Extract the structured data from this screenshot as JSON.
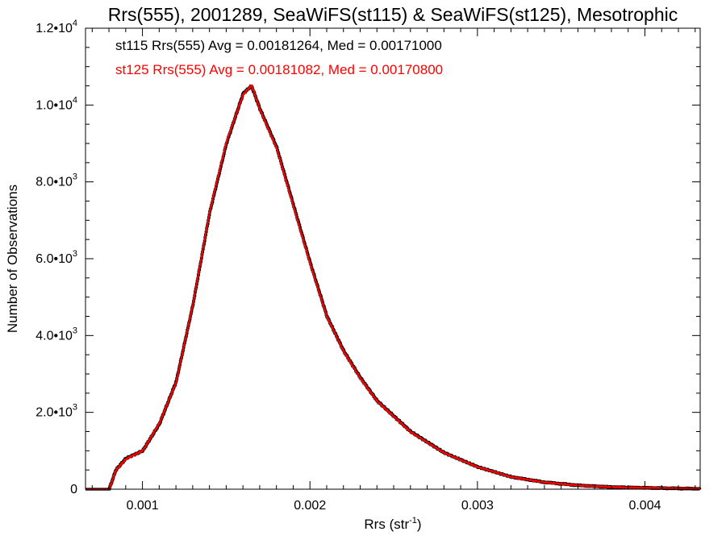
{
  "chart_data": {
    "type": "line",
    "style": "step-histogram",
    "title": "Rrs(555), 2001289, SeaWiFS(st115) & SeaWiFS(st125), Mesotrophic",
    "xlabel": {
      "main": "Rrs (str",
      "sup": "-1",
      "end": ")"
    },
    "ylabel": "Number of Observations",
    "xlim": [
      0.00066,
      0.00433
    ],
    "ylim": [
      0,
      12000
    ],
    "grid": false,
    "x_ticks": [
      {
        "value": 0.001,
        "label": "0.001"
      },
      {
        "value": 0.002,
        "label": "0.002"
      },
      {
        "value": 0.003,
        "label": "0.003"
      },
      {
        "value": 0.004,
        "label": "0.004"
      }
    ],
    "y_ticks": [
      {
        "value": 0,
        "mant": "0",
        "exp": ""
      },
      {
        "value": 2000,
        "mant": "2.0•10",
        "exp": "3"
      },
      {
        "value": 4000,
        "mant": "4.0•10",
        "exp": "3"
      },
      {
        "value": 6000,
        "mant": "6.0•10",
        "exp": "3"
      },
      {
        "value": 8000,
        "mant": "8.0•10",
        "exp": "3"
      },
      {
        "value": 10000,
        "mant": "1.0•10",
        "exp": "4"
      },
      {
        "value": 12000,
        "mant": "1.2•10",
        "exp": "4"
      }
    ],
    "annotations": [
      {
        "text": "st115 Rrs(555) Avg = 0.00181264, Med = 0.00171000",
        "color": "#000000"
      },
      {
        "text": "st125 Rrs(555) Avg = 0.00181082, Med = 0.00170800",
        "color": "#ff0000"
      }
    ],
    "series": [
      {
        "color": "#000000",
        "x": [
          0.0008,
          0.00084,
          0.0009,
          0.001,
          0.0011,
          0.0012,
          0.0013,
          0.0014,
          0.0015,
          0.0016,
          0.00165,
          0.0017,
          0.0018,
          0.0019,
          0.002,
          0.0021,
          0.0022,
          0.0023,
          0.0024,
          0.0026,
          0.0028,
          0.003,
          0.0032,
          0.0034,
          0.0036,
          0.0038,
          0.004,
          0.0042,
          0.00433
        ],
        "y": [
          0,
          500,
          800,
          1000,
          1700,
          2800,
          4800,
          7200,
          9000,
          10300,
          10500,
          9900,
          8900,
          7400,
          5900,
          4500,
          3600,
          2900,
          2300,
          1500,
          950,
          580,
          320,
          180,
          100,
          55,
          35,
          20,
          10
        ]
      },
      {
        "color": "#ff0000",
        "x": [
          0.0008,
          0.00084,
          0.0009,
          0.001,
          0.0011,
          0.0012,
          0.0013,
          0.0014,
          0.0015,
          0.0016,
          0.00165,
          0.0017,
          0.0018,
          0.0019,
          0.002,
          0.0021,
          0.0022,
          0.0023,
          0.0024,
          0.0026,
          0.0028,
          0.003,
          0.0032,
          0.0034,
          0.0036,
          0.0038,
          0.004,
          0.0042,
          0.00433
        ],
        "y": [
          0,
          500,
          790,
          1000,
          1720,
          2790,
          4820,
          7230,
          9050,
          10280,
          10520,
          9880,
          8870,
          7360,
          5860,
          4480,
          3580,
          2880,
          2290,
          1490,
          945,
          575,
          318,
          178,
          98,
          54,
          34,
          19,
          9
        ]
      }
    ]
  }
}
